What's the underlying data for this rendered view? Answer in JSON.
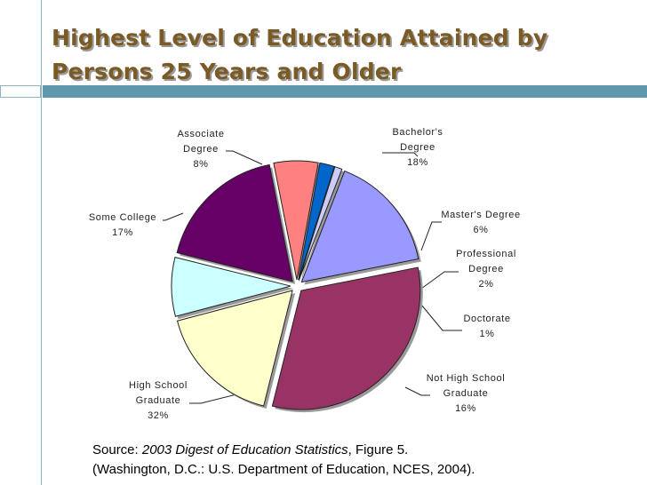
{
  "slide": {
    "title_line1": "Highest Level of Education Attained by",
    "title_line2": "Persons 25 Years and Older",
    "source_prefix": "Source: ",
    "source_title": "2003 Digest of Education Statistics",
    "source_suffix": ", Figure 5.",
    "source_line2": "(Washington, D.C.: U.S. Department of Education, NCES, 2004)."
  },
  "colors": {
    "title": "#7a5a25",
    "accent_bar": "#5f97ac"
  },
  "chart_data": {
    "type": "pie",
    "title": "",
    "slices": [
      {
        "label": [
          "Bachelor's",
          "Degree",
          "18%"
        ],
        "value": 18,
        "color": "#660066"
      },
      {
        "label": [
          "Master's Degree",
          "6%"
        ],
        "value": 6,
        "color": "#ff8080"
      },
      {
        "label": [
          "Professional",
          "Degree",
          "2%"
        ],
        "value": 2,
        "color": "#0066cc"
      },
      {
        "label": [
          "Doctorate",
          "1%"
        ],
        "value": 1,
        "color": "#ccccff"
      },
      {
        "label": [
          "Not High School",
          "Graduate",
          "16%"
        ],
        "value": 16,
        "color": "#9999ff"
      },
      {
        "label": [
          "High School",
          "Graduate",
          "32%"
        ],
        "value": 32,
        "color": "#993366"
      },
      {
        "label": [
          "Some College",
          "17%"
        ],
        "value": 17,
        "color": "#ffffcc"
      },
      {
        "label": [
          "Associate",
          "Degree",
          "8%"
        ],
        "value": 8,
        "color": "#ccffff"
      }
    ]
  }
}
